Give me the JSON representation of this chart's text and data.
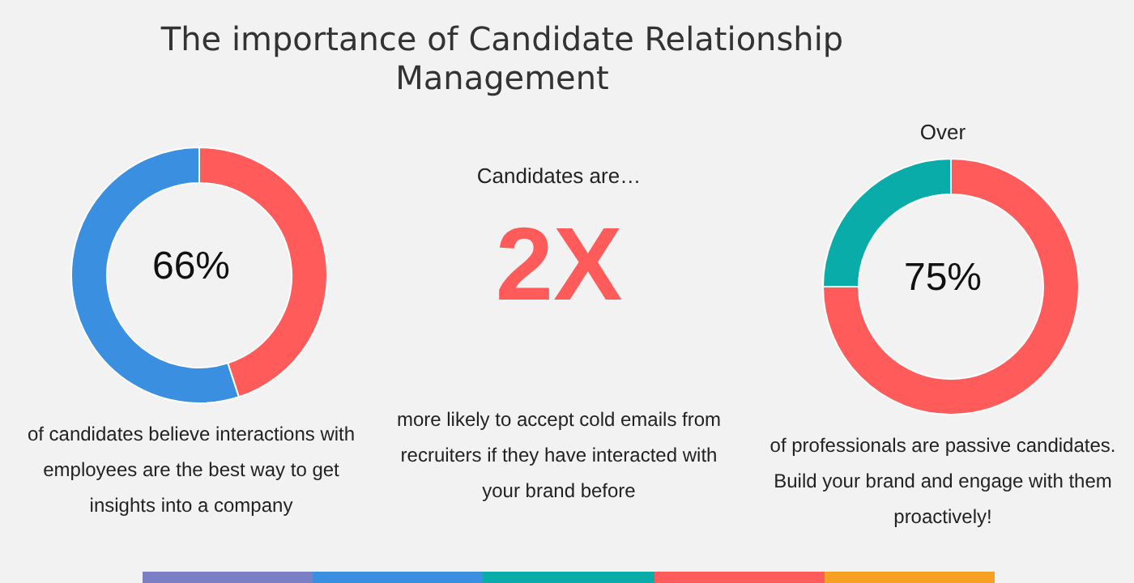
{
  "chart_data": [
    {
      "type": "donut",
      "categories": [
        null,
        null
      ],
      "values": [
        45,
        55
      ],
      "colors": [
        "#ff5b5a",
        "#3a8fe0"
      ],
      "annotations": [
        "66%",
        "of candidates believe interactions with employees are the best way to get insights into a company"
      ]
    },
    {
      "type": "other",
      "title": "The importance of Candidate Relationship Management",
      "annotations": [
        "Candidates are…",
        "2X",
        "more likely to accept cold emails from recruiters if they have interacted with your brand before"
      ]
    },
    {
      "type": "donut",
      "categories": [
        null,
        null
      ],
      "values": [
        75,
        25
      ],
      "colors": [
        "#ff5b5a",
        "#0aaca9"
      ],
      "annotations": [
        "Over",
        "75%",
        "of professionals are passive candidates. Build your brand and engage with them proactively!"
      ]
    }
  ]
}
